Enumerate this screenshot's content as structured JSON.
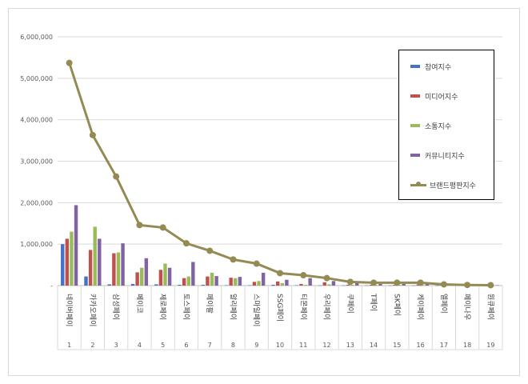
{
  "colors": {
    "participation": "#4472c4",
    "media": "#c0504d",
    "communication": "#9bbb59",
    "community": "#8064a2",
    "brand_index": "#948a54"
  },
  "legend": {
    "participation": "참여지수",
    "media": "미디어지수",
    "communication": "소통지수",
    "community": "커뮤니티지수",
    "brand_index": "브랜드평판지수"
  },
  "chart_data": {
    "type": "bar",
    "categories": [
      "네이버페이",
      "카카오페이",
      "삼성페이",
      "페이코",
      "제로페이",
      "토스페이",
      "페이팔",
      "알리페이",
      "스마일페이",
      "SSG페이",
      "티몬페이",
      "우리페이",
      "쿠페이",
      "T페이",
      "SK페이",
      "케이페이",
      "엘페이",
      "페이나우",
      "원큐페이"
    ],
    "ranks": [
      "1",
      "2",
      "3",
      "4",
      "5",
      "6",
      "7",
      "8",
      "9",
      "10",
      "11",
      "12",
      "13",
      "14",
      "15",
      "16",
      "17",
      "18",
      "19"
    ],
    "series": [
      {
        "name": "참여지수",
        "key": "participation",
        "values": [
          1000000,
          220000,
          30000,
          40000,
          30000,
          20000,
          20000,
          10000,
          10000,
          20000,
          10000,
          5000,
          5000,
          5000,
          5000,
          5000,
          5000,
          2000,
          2000
        ]
      },
      {
        "name": "미디어지수",
        "key": "media",
        "values": [
          1130000,
          860000,
          780000,
          320000,
          380000,
          180000,
          220000,
          190000,
          90000,
          100000,
          40000,
          80000,
          20000,
          20000,
          20000,
          30000,
          10000,
          5000,
          5000
        ]
      },
      {
        "name": "소통지수",
        "key": "communication",
        "values": [
          1300000,
          1420000,
          800000,
          430000,
          530000,
          220000,
          310000,
          180000,
          110000,
          60000,
          20000,
          30000,
          20000,
          20000,
          20000,
          20000,
          10000,
          5000,
          5000
        ]
      },
      {
        "name": "커뮤니티지수",
        "key": "community",
        "values": [
          1940000,
          1130000,
          1020000,
          660000,
          430000,
          570000,
          230000,
          210000,
          310000,
          140000,
          180000,
          110000,
          60000,
          40000,
          40000,
          40000,
          30000,
          10000,
          10000
        ]
      }
    ],
    "line_series": {
      "name": "브랜드평판지수",
      "key": "brand_index",
      "values": [
        5370000,
        3630000,
        2630000,
        1460000,
        1400000,
        1020000,
        840000,
        630000,
        530000,
        300000,
        250000,
        180000,
        90000,
        70000,
        70000,
        70000,
        30000,
        15000,
        10000
      ]
    },
    "y_ticks": [
      "6,000,000",
      "5,000,000",
      "4,000,000",
      "3,000,000",
      "2,000,000",
      "1,000,000",
      "-"
    ],
    "ylim": [
      0,
      6000000
    ],
    "grid": true,
    "legend_position": "top-right"
  }
}
